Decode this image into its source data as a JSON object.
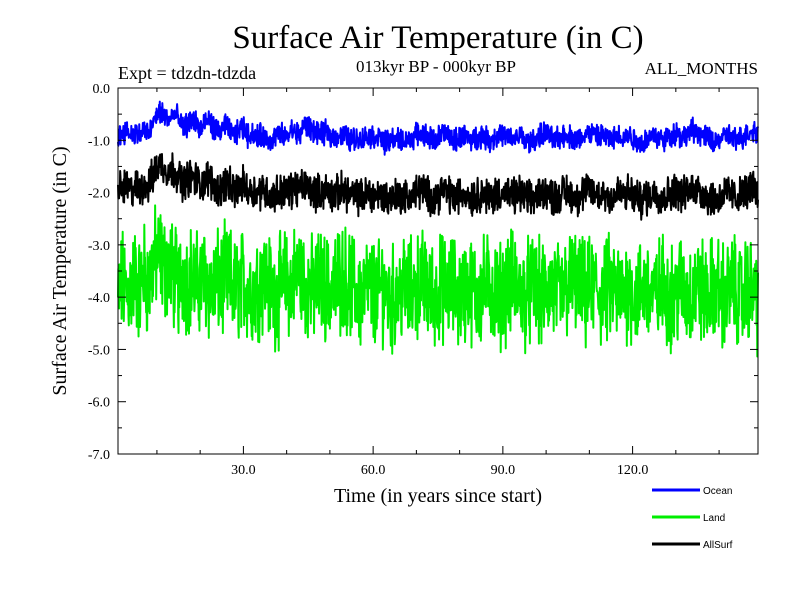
{
  "chart_data": {
    "type": "line",
    "title": "Surface Air Temperature (in C)",
    "subtitle_left": "Expt = tdzdn-tdzda",
    "subtitle_center": "013kyr BP - 000kyr BP",
    "subtitle_right": "ALL_MONTHS",
    "xlabel": "Time (in years since start)",
    "ylabel": "Surface Air Temperature (in C)",
    "xlim": [
      1,
      149
    ],
    "ylim": [
      -7.0,
      0.0
    ],
    "x_ticks": [
      30,
      60,
      90,
      120
    ],
    "x_tick_labels": [
      "30.0",
      "60.0",
      "90.0",
      "120.0"
    ],
    "y_ticks": [
      0,
      -1,
      -2,
      -3,
      -4,
      -5,
      -6,
      -7
    ],
    "y_tick_labels": [
      "0.0",
      "-1.0",
      "-2.0",
      "-3.0",
      "-4.0",
      "-5.0",
      "-6.0",
      "-7.0"
    ],
    "points_per_year": 12,
    "series": [
      {
        "name": "Ocean",
        "color": "#0000ff",
        "yearly_mean": [
          -0.95,
          -0.85,
          -0.8,
          -0.9,
          -0.85,
          -0.9,
          -0.8,
          -0.9,
          -0.7,
          -0.5,
          -0.45,
          -0.55,
          -0.6,
          -0.5,
          -0.6,
          -0.75,
          -0.7,
          -0.6,
          -0.65,
          -0.8,
          -0.7,
          -0.6,
          -0.75,
          -0.85,
          -0.8,
          -0.7,
          -0.85,
          -0.9,
          -0.8,
          -0.75,
          -0.9,
          -0.85,
          -0.95,
          -0.9,
          -0.95,
          -1.0,
          -0.95,
          -0.9,
          -0.9,
          -0.95,
          -0.8,
          -0.85,
          -0.9,
          -0.7,
          -0.75,
          -0.8,
          -0.85,
          -0.9,
          -0.85,
          -0.9,
          -0.95,
          -0.9,
          -0.9,
          -0.95,
          -1.0,
          -0.95,
          -1.0,
          -0.95,
          -0.9,
          -0.95,
          -0.9,
          -1.0,
          -1.05,
          -1.0,
          -0.95,
          -1.0,
          -1.0,
          -1.0,
          -0.95,
          -0.9,
          -0.85,
          -0.9,
          -0.95,
          -1.0,
          -0.95,
          -0.85,
          -0.9,
          -0.95,
          -1.0,
          -0.95,
          -0.9,
          -0.95,
          -1.0,
          -0.95,
          -0.9,
          -0.95,
          -1.0,
          -0.95,
          -0.9,
          -0.9,
          -0.95,
          -1.0,
          -0.95,
          -0.9,
          -1.0,
          -1.05,
          -1.0,
          -0.95,
          -0.9,
          -0.85,
          -0.95,
          -1.0,
          -0.95,
          -0.9,
          -0.9,
          -0.95,
          -1.0,
          -0.95,
          -0.9,
          -0.85,
          -0.9,
          -0.95,
          -0.9,
          -0.95,
          -1.0,
          -0.95,
          -0.9,
          -0.95,
          -0.9,
          -0.95,
          -1.0,
          -1.05,
          -1.0,
          -0.95,
          -0.9,
          -0.95,
          -1.0,
          -0.95,
          -0.9,
          -0.85,
          -0.9,
          -0.95,
          -0.85,
          -0.8,
          -0.85,
          -0.9,
          -0.95,
          -1.0,
          -1.05,
          -1.0,
          -0.95,
          -0.9,
          -0.95,
          -1.0,
          -0.95,
          -0.9,
          -0.85,
          -0.8,
          -0.9
        ],
        "spread": 0.35
      },
      {
        "name": "Land",
        "color": "#00ee00",
        "yearly_mean": [
          -4.1,
          -3.7,
          -3.9,
          -3.8,
          -3.6,
          -3.9,
          -3.5,
          -3.8,
          -3.4,
          -3.2,
          -3.3,
          -3.5,
          -3.4,
          -3.6,
          -3.8,
          -3.5,
          -3.7,
          -3.6,
          -3.8,
          -3.7,
          -3.6,
          -3.8,
          -3.9,
          -3.7,
          -3.8,
          -3.6,
          -3.7,
          -3.9,
          -3.8,
          -3.7,
          -3.8,
          -3.9,
          -3.8,
          -3.7,
          -3.6,
          -3.8,
          -4.0,
          -3.9,
          -3.8,
          -3.7,
          -3.8,
          -3.6,
          -3.5,
          -3.7,
          -3.8,
          -3.9,
          -3.8,
          -3.7,
          -3.8,
          -3.9,
          -3.8,
          -3.7,
          -3.6,
          -3.7,
          -3.8,
          -3.9,
          -4.0,
          -3.9,
          -3.8,
          -3.9,
          -4.0,
          -3.8,
          -3.9,
          -4.1,
          -4.0,
          -3.9,
          -3.8,
          -3.9,
          -3.9,
          -3.8,
          -3.7,
          -3.8,
          -3.9,
          -4.0,
          -3.9,
          -3.8,
          -3.9,
          -3.8,
          -3.9,
          -4.0,
          -3.9,
          -3.8,
          -3.9,
          -4.0,
          -3.9,
          -3.8,
          -3.8,
          -3.9,
          -4.0,
          -3.9,
          -3.8,
          -3.7,
          -3.8,
          -3.9,
          -4.0,
          -3.9,
          -3.8,
          -3.9,
          -4.0,
          -3.9,
          -3.8,
          -3.9,
          -4.0,
          -3.9,
          -3.8,
          -3.7,
          -3.8,
          -3.9,
          -4.0,
          -3.9,
          -3.8,
          -3.9,
          -4.0,
          -3.9,
          -3.8,
          -3.9,
          -4.0,
          -3.9,
          -3.8,
          -3.9,
          -4.0,
          -3.9,
          -3.8,
          -3.9,
          -4.0,
          -3.9,
          -3.8,
          -3.9,
          -4.0,
          -3.9,
          -3.8,
          -3.9,
          -4.0,
          -3.9,
          -3.8,
          -3.9,
          -4.0,
          -3.9,
          -3.8,
          -3.9,
          -4.0,
          -3.9,
          -3.8,
          -3.9,
          -4.0,
          -3.9,
          -3.8,
          -3.9,
          -4.1
        ],
        "spread": 1.6
      },
      {
        "name": "AllSurf",
        "color": "#000000",
        "yearly_mean": [
          -2.0,
          -1.9,
          -1.9,
          -2.0,
          -1.85,
          -2.0,
          -1.8,
          -1.9,
          -1.7,
          -1.5,
          -1.45,
          -1.55,
          -1.6,
          -1.55,
          -1.7,
          -1.8,
          -1.75,
          -1.7,
          -1.75,
          -1.85,
          -1.8,
          -1.7,
          -1.85,
          -1.95,
          -1.9,
          -1.8,
          -1.9,
          -2.0,
          -1.9,
          -1.85,
          -1.95,
          -1.95,
          -2.0,
          -1.95,
          -1.95,
          -2.05,
          -2.05,
          -2.0,
          -1.95,
          -2.0,
          -1.95,
          -1.9,
          -1.95,
          -1.85,
          -1.9,
          -1.95,
          -2.0,
          -2.0,
          -1.95,
          -2.0,
          -2.05,
          -2.0,
          -1.95,
          -2.0,
          -2.05,
          -2.05,
          -2.1,
          -2.05,
          -2.0,
          -2.05,
          -2.05,
          -2.05,
          -2.1,
          -2.1,
          -2.05,
          -2.05,
          -2.05,
          -2.1,
          -2.05,
          -2.0,
          -1.95,
          -2.0,
          -2.05,
          -2.1,
          -2.05,
          -1.95,
          -2.0,
          -2.05,
          -2.1,
          -2.05,
          -2.0,
          -2.05,
          -2.1,
          -2.05,
          -2.0,
          -2.05,
          -2.1,
          -2.05,
          -2.0,
          -2.0,
          -2.05,
          -2.1,
          -2.05,
          -2.0,
          -2.1,
          -2.15,
          -2.1,
          -2.05,
          -2.0,
          -1.95,
          -2.05,
          -2.1,
          -2.05,
          -2.0,
          -2.0,
          -2.05,
          -2.1,
          -2.05,
          -2.0,
          -1.95,
          -2.0,
          -2.05,
          -2.0,
          -2.05,
          -2.1,
          -2.05,
          -2.0,
          -2.05,
          -2.0,
          -2.05,
          -2.1,
          -2.15,
          -2.1,
          -2.05,
          -2.0,
          -2.05,
          -2.1,
          -2.05,
          -2.0,
          -1.95,
          -2.0,
          -2.05,
          -1.95,
          -1.9,
          -1.95,
          -2.0,
          -2.05,
          -2.1,
          -2.15,
          -2.1,
          -2.05,
          -2.0,
          -2.05,
          -2.1,
          -2.05,
          -2.0,
          -1.95,
          -1.9,
          -2.0
        ],
        "spread": 0.55
      }
    ],
    "legend": {
      "placement": "bottom-right",
      "entries": [
        "Ocean",
        "Land",
        "AllSurf"
      ]
    }
  }
}
